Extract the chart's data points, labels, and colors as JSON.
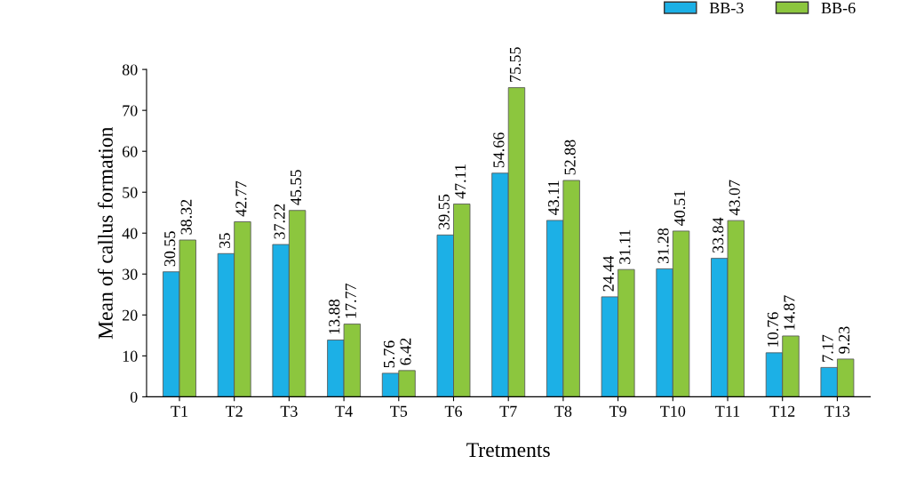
{
  "chart_data": {
    "type": "bar",
    "xlabel": "Tretments",
    "ylabel": "Mean of callus formation",
    "categories": [
      "T1",
      "T2",
      "T3",
      "T4",
      "T5",
      "T6",
      "T7",
      "T8",
      "T9",
      "T10",
      "T11",
      "T12",
      "T13"
    ],
    "series": [
      {
        "name": "BB-3",
        "color": "#1cb0e6",
        "values": [
          30.55,
          35,
          37.22,
          13.88,
          5.76,
          39.55,
          54.66,
          43.11,
          24.44,
          31.28,
          33.84,
          10.76,
          7.17
        ]
      },
      {
        "name": "BB-6",
        "color": "#8cc63e",
        "values": [
          38.32,
          42.77,
          45.55,
          17.77,
          6.42,
          47.11,
          75.55,
          52.88,
          31.11,
          40.51,
          43.07,
          14.87,
          9.23
        ]
      }
    ],
    "ylim": [
      0,
      80
    ],
    "yticks": [
      0,
      10,
      20,
      30,
      40,
      50,
      60,
      70,
      80
    ],
    "grid": false,
    "legend": "top right",
    "data_labels": true
  }
}
